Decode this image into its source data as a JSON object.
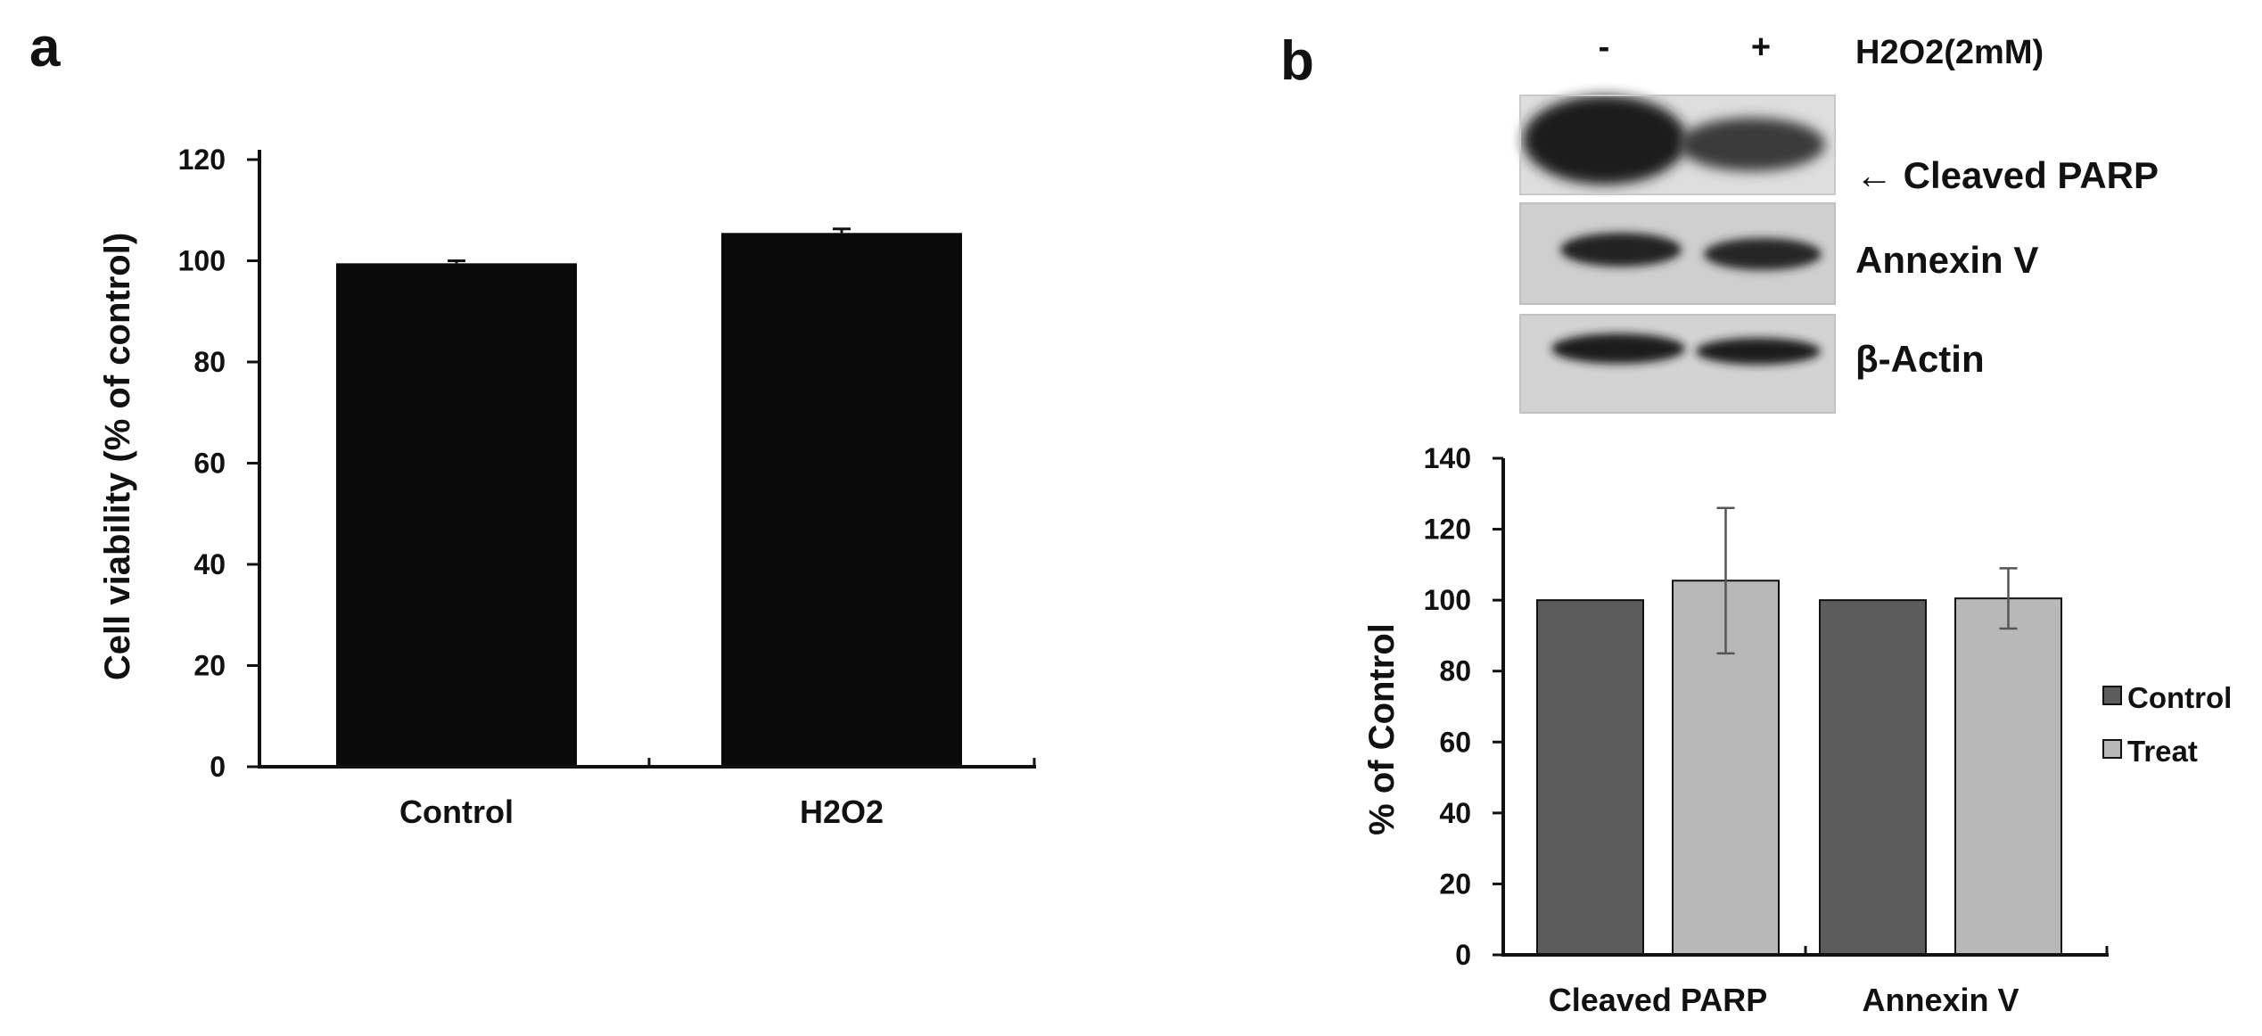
{
  "panels": {
    "a": "a",
    "b": "b"
  },
  "chart_data": [
    {
      "id": "a",
      "type": "bar",
      "categories": [
        "Control",
        "H2O2"
      ],
      "values": [
        99.5,
        105.5
      ],
      "errors": [
        0.5,
        0.8
      ],
      "ylabel": "Cell viability (% of control)",
      "ylim": [
        0,
        120
      ],
      "yticks": [
        "0",
        "20",
        "40",
        "60",
        "80",
        "100",
        "120"
      ],
      "colors": [
        "#0a0a0a",
        "#0a0a0a"
      ],
      "grid": false
    },
    {
      "id": "b",
      "type": "bar",
      "categories": [
        "Cleaved PARP",
        "Annexin V"
      ],
      "series": [
        {
          "name": "Control",
          "values": [
            100,
            100
          ],
          "errors": [
            0,
            0
          ],
          "color": "#5c5c5c"
        },
        {
          "name": "Treat",
          "values": [
            105.5,
            100.5
          ],
          "errors": [
            20.5,
            8.5
          ],
          "color": "#b8b8b8"
        }
      ],
      "ylabel": "% of Control",
      "ylim": [
        0,
        140
      ],
      "yticks": [
        "0",
        "20",
        "40",
        "60",
        "80",
        "100",
        "120",
        "140"
      ],
      "legend": "right",
      "grid": false
    }
  ],
  "blot": {
    "lanes": [
      "-",
      "+"
    ],
    "treatment": "H2O2(2mM)",
    "rows": [
      {
        "label": "← Cleaved PARP"
      },
      {
        "label": "Annexin V"
      },
      {
        "label": "β-Actin"
      }
    ]
  }
}
